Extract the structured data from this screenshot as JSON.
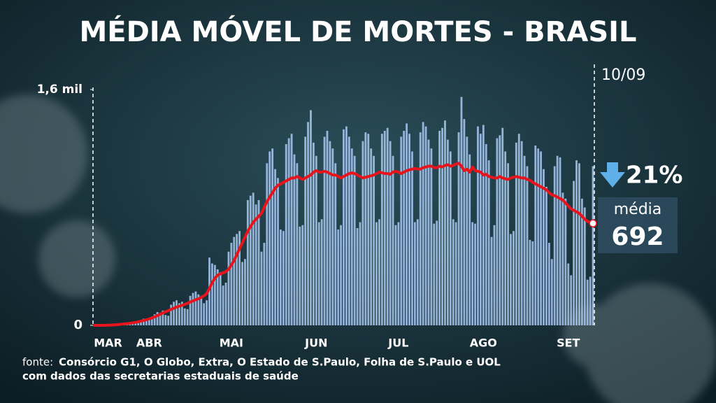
{
  "chart_data": {
    "type": "bar",
    "title": "MÉDIA MÓVEL DE MORTES - BRASIL",
    "categories": [
      null,
      null,
      null,
      null,
      null,
      "MAR",
      null,
      null,
      null,
      null,
      null,
      null,
      null,
      null,
      null,
      null,
      null,
      null,
      null,
      null,
      "ABR",
      null,
      null,
      null,
      null,
      null,
      null,
      null,
      null,
      null,
      null,
      null,
      null,
      null,
      null,
      null,
      null,
      null,
      null,
      null,
      null,
      null,
      null,
      null,
      null,
      null,
      null,
      null,
      null,
      null,
      "MAI",
      null,
      null,
      null,
      null,
      null,
      null,
      null,
      null,
      null,
      null,
      null,
      null,
      null,
      null,
      null,
      null,
      null,
      null,
      null,
      null,
      null,
      null,
      null,
      null,
      null,
      null,
      null,
      null,
      null,
      null,
      "JUN",
      null,
      null,
      null,
      null,
      null,
      null,
      null,
      null,
      null,
      null,
      null,
      null,
      null,
      null,
      null,
      null,
      null,
      null,
      null,
      null,
      null,
      null,
      null,
      null,
      null,
      null,
      null,
      null,
      null,
      "JUL",
      null,
      null,
      null,
      null,
      null,
      null,
      null,
      null,
      null,
      null,
      null,
      null,
      null,
      null,
      null,
      null,
      null,
      null,
      null,
      null,
      null,
      null,
      null,
      null,
      null,
      null,
      null,
      null,
      null,
      null,
      "AGO",
      null,
      null,
      null,
      null,
      null,
      null,
      null,
      null,
      null,
      null,
      null,
      null,
      null,
      null,
      null,
      null,
      null,
      null,
      null,
      null,
      null,
      null,
      null,
      null,
      null,
      null,
      null,
      null,
      null,
      null,
      "SET",
      null,
      null,
      null,
      null,
      null,
      null,
      null,
      null,
      null
    ],
    "series": [
      {
        "type": "bar",
        "color": "#a9c9f2",
        "values": [
          0,
          0,
          0,
          0,
          0,
          1,
          3,
          4,
          5,
          7,
          10,
          13,
          8,
          9,
          22,
          26,
          31,
          30,
          45,
          40,
          42,
          60,
          75,
          90,
          85,
          100,
          70,
          65,
          140,
          160,
          170,
          150,
          160,
          115,
          110,
          200,
          220,
          230,
          210,
          200,
          150,
          170,
          460,
          420,
          410,
          380,
          360,
          270,
          290,
          500,
          560,
          600,
          620,
          640,
          430,
          450,
          850,
          880,
          900,
          820,
          850,
          500,
          560,
          1100,
          1180,
          1200,
          1060,
          1000,
          650,
          640,
          1230,
          1270,
          1300,
          1160,
          1100,
          670,
          680,
          1280,
          1380,
          1460,
          1240,
          1150,
          700,
          720,
          1280,
          1320,
          1250,
          1200,
          1100,
          650,
          680,
          1330,
          1350,
          1280,
          1200,
          1150,
          660,
          700,
          1250,
          1310,
          1300,
          1200,
          1150,
          700,
          720,
          1300,
          1320,
          1340,
          1250,
          1150,
          680,
          700,
          1280,
          1320,
          1370,
          1300,
          1180,
          700,
          720,
          1310,
          1380,
          1350,
          1260,
          1200,
          690,
          710,
          1320,
          1340,
          1390,
          1260,
          1180,
          720,
          700,
          1310,
          1550,
          1400,
          1280,
          1160,
          700,
          690,
          1350,
          1300,
          1360,
          1230,
          1120,
          600,
          680,
          1270,
          1290,
          1340,
          1180,
          1100,
          620,
          640,
          1240,
          1300,
          1250,
          1150,
          1080,
          580,
          570,
          1220,
          1200,
          1180,
          1060,
          940,
          560,
          450,
          1080,
          1150,
          1140,
          900,
          860,
          420,
          340,
          980,
          1120,
          1100,
          860,
          800,
          310,
          330,
          1080
        ]
      },
      {
        "type": "line",
        "color": "#e8141c",
        "values": [
          0,
          0,
          0,
          0,
          0,
          1,
          2,
          3,
          4,
          6,
          8,
          10,
          12,
          14,
          17,
          20,
          24,
          28,
          33,
          38,
          44,
          50,
          58,
          66,
          75,
          84,
          92,
          100,
          108,
          116,
          124,
          130,
          136,
          142,
          150,
          158,
          166,
          174,
          180,
          190,
          200,
          215,
          250,
          290,
          320,
          340,
          350,
          355,
          365,
          380,
          410,
          440,
          480,
          520,
          560,
          600,
          640,
          670,
          700,
          720,
          740,
          760,
          800,
          840,
          870,
          900,
          930,
          950,
          960,
          970,
          980,
          990,
          1000,
          1000,
          1010,
          1000,
          990,
          1000,
          1010,
          1020,
          1040,
          1050,
          1040,
          1040,
          1045,
          1040,
          1030,
          1020,
          1020,
          1010,
          1000,
          1010,
          1020,
          1030,
          1035,
          1030,
          1020,
          1010,
          1000,
          1005,
          1010,
          1015,
          1020,
          1030,
          1040,
          1035,
          1030,
          1030,
          1025,
          1040,
          1045,
          1040,
          1030,
          1040,
          1050,
          1055,
          1060,
          1065,
          1060,
          1060,
          1070,
          1075,
          1080,
          1080,
          1070,
          1070,
          1080,
          1075,
          1085,
          1090,
          1080,
          1085,
          1095,
          1100,
          1080,
          1050,
          1060,
          1040,
          1075,
          1050,
          1045,
          1040,
          1020,
          1025,
          1010,
          1005,
          1000,
          1000,
          1010,
          1000,
          995,
          990,
          1000,
          1005,
          1010,
          1005,
          1000,
          1000,
          990,
          985,
          970,
          960,
          950,
          940,
          930,
          920,
          900,
          885,
          880,
          870,
          860,
          850,
          830,
          810,
          790,
          780,
          770,
          760,
          740,
          720,
          705,
          700,
          692
        ]
      }
    ],
    "ylim": [
      0,
      1600
    ],
    "yticks": [
      0,
      {
        "value": 1600,
        "label": "1,6 mil"
      }
    ],
    "annotation": {
      "date": "10/09",
      "change": "21%",
      "label": "média",
      "value": 692
    },
    "source_prefix": "fonte:",
    "source": [
      "Consórcio G1, O Globo, Extra, O Estado de S.Paulo, Folha de S.Paulo e UOL",
      "com dados das secretarias estaduais de saúde"
    ]
  }
}
